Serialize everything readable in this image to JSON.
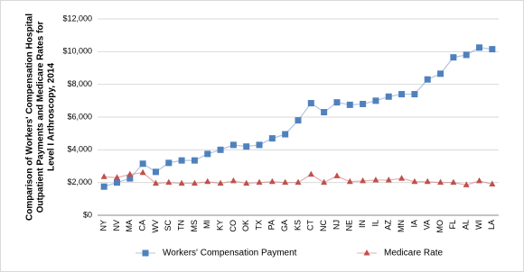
{
  "chart_data": {
    "type": "line",
    "title": [
      "Comparison of Workers' Compensation Hospital",
      "Outpatient Payments and Medicare Rates for",
      "Level I Arthroscopy, 2014"
    ],
    "categories": [
      "NY",
      "NV",
      "MA",
      "CA",
      "WV",
      "SC",
      "TN",
      "MS",
      "MI",
      "KY",
      "CO",
      "OK",
      "TX",
      "PA",
      "GA",
      "KS",
      "CT",
      "NC",
      "NJ",
      "NE",
      "IN",
      "IL",
      "AZ",
      "MN",
      "IA",
      "VA",
      "MO",
      "FL",
      "AL",
      "WI",
      "LA"
    ],
    "series": [
      {
        "name": "Workers' Compensation Payment",
        "color": "#4f81bd",
        "marker": "square",
        "values": [
          1750,
          2000,
          2250,
          3150,
          2650,
          3200,
          3350,
          3350,
          3750,
          4000,
          4300,
          4200,
          4300,
          4700,
          4950,
          5800,
          6850,
          6300,
          6900,
          6750,
          6800,
          7000,
          7250,
          7400,
          7400,
          8300,
          8650,
          9650,
          9800,
          10250,
          10150
        ]
      },
      {
        "name": "Medicare Rate",
        "color": "#c0504d",
        "marker": "triangle",
        "values": [
          2350,
          2300,
          2500,
          2600,
          1950,
          2000,
          1950,
          1950,
          2050,
          1950,
          2100,
          1950,
          2000,
          2050,
          2000,
          2000,
          2500,
          2000,
          2400,
          2050,
          2100,
          2150,
          2150,
          2250,
          2050,
          2050,
          2000,
          2000,
          1850,
          2100,
          1900
        ]
      }
    ],
    "ylim": [
      0,
      12000
    ],
    "yticks": [
      {
        "value": 0,
        "label": "$0"
      },
      {
        "value": 2000,
        "label": "$2,000"
      },
      {
        "value": 4000,
        "label": "$4,000"
      },
      {
        "value": 6000,
        "label": "$6,000"
      },
      {
        "value": 8000,
        "label": "$8,000"
      },
      {
        "value": 10000,
        "label": "$10,000"
      },
      {
        "value": 12000,
        "label": "$12,000"
      }
    ],
    "grid": true,
    "legend": "bottom"
  }
}
